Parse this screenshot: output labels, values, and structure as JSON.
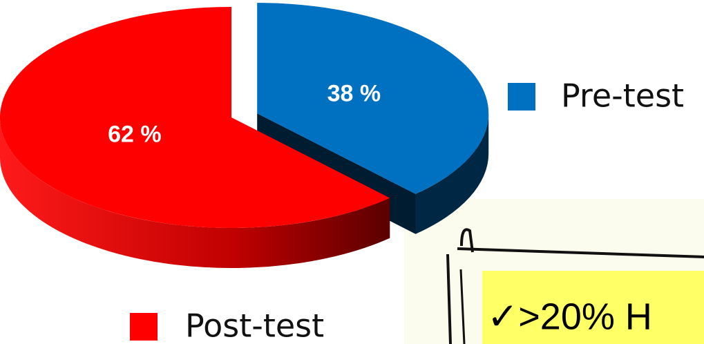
{
  "chart_data": {
    "type": "pie",
    "categories": [
      "Pre-test",
      "Post-test"
    ],
    "values": [
      38,
      62
    ],
    "value_labels": [
      "38 %",
      "62 %"
    ],
    "colors": [
      "#0070c0",
      "#ff0000"
    ],
    "annotation": "✓>20% H"
  }
}
